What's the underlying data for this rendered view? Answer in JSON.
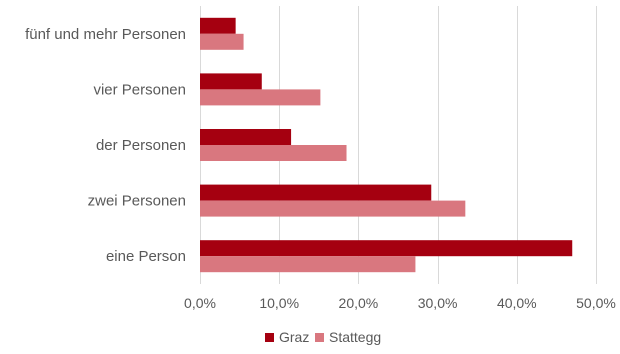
{
  "chart_data": {
    "type": "bar",
    "orientation": "horizontal",
    "title": "",
    "xlabel": "",
    "ylabel": "",
    "categories": [
      "fünf und mehr Personen",
      "vier Personen",
      "der Personen",
      "zwei Personen",
      "eine Person"
    ],
    "series": [
      {
        "name": "Graz",
        "color": "#a50010",
        "values": [
          4.5,
          7.8,
          11.5,
          29.2,
          47.0
        ]
      },
      {
        "name": "Stattegg",
        "color": "#d9777f",
        "values": [
          5.5,
          15.2,
          18.5,
          33.5,
          27.2
        ]
      }
    ],
    "xlim": [
      0,
      50
    ],
    "xticks": [
      0,
      10,
      20,
      30,
      40,
      50
    ],
    "xtick_labels": [
      "0,0%",
      "10,0%",
      "20,0%",
      "30,0%",
      "40,0%",
      "50,0%"
    ],
    "grid": true,
    "legend_position": "bottom"
  }
}
